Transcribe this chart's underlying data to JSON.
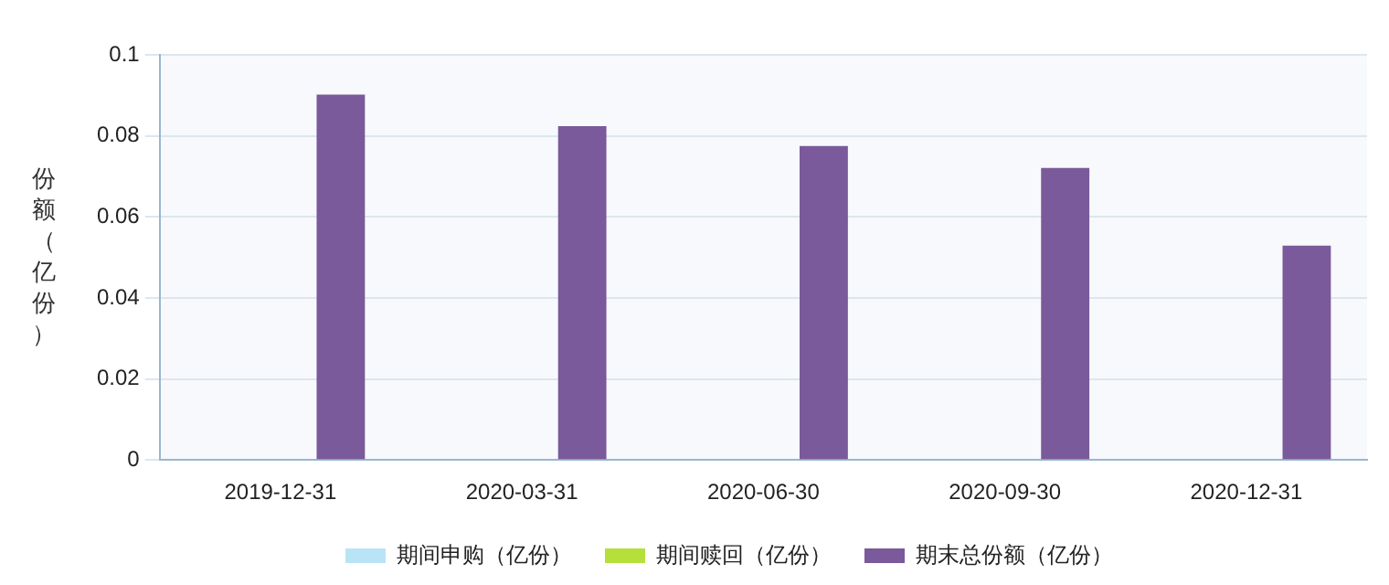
{
  "chart_data": {
    "type": "bar",
    "ylabel": "份额（亿份）",
    "categories": [
      "2019-12-31",
      "2020-03-31",
      "2020-06-30",
      "2020-09-30",
      "2020-12-31"
    ],
    "series": [
      {
        "name": "期间申购（亿份）",
        "color": "#b9e4f5",
        "values": [
          0,
          0,
          0,
          0,
          0
        ]
      },
      {
        "name": "期间赎回（亿份）",
        "color": "#b5e03c",
        "values": [
          0,
          0,
          0,
          0,
          0
        ]
      },
      {
        "name": "期末总份额（亿份）",
        "color": "#7a5a9a",
        "values": [
          0.0902,
          0.0824,
          0.0775,
          0.0721,
          0.0529
        ]
      }
    ],
    "ylim": [
      0,
      0.1
    ],
    "yticks": [
      0,
      0.02,
      0.04,
      0.06,
      0.08,
      0.1
    ],
    "grid": "y",
    "legend": "bottom"
  }
}
